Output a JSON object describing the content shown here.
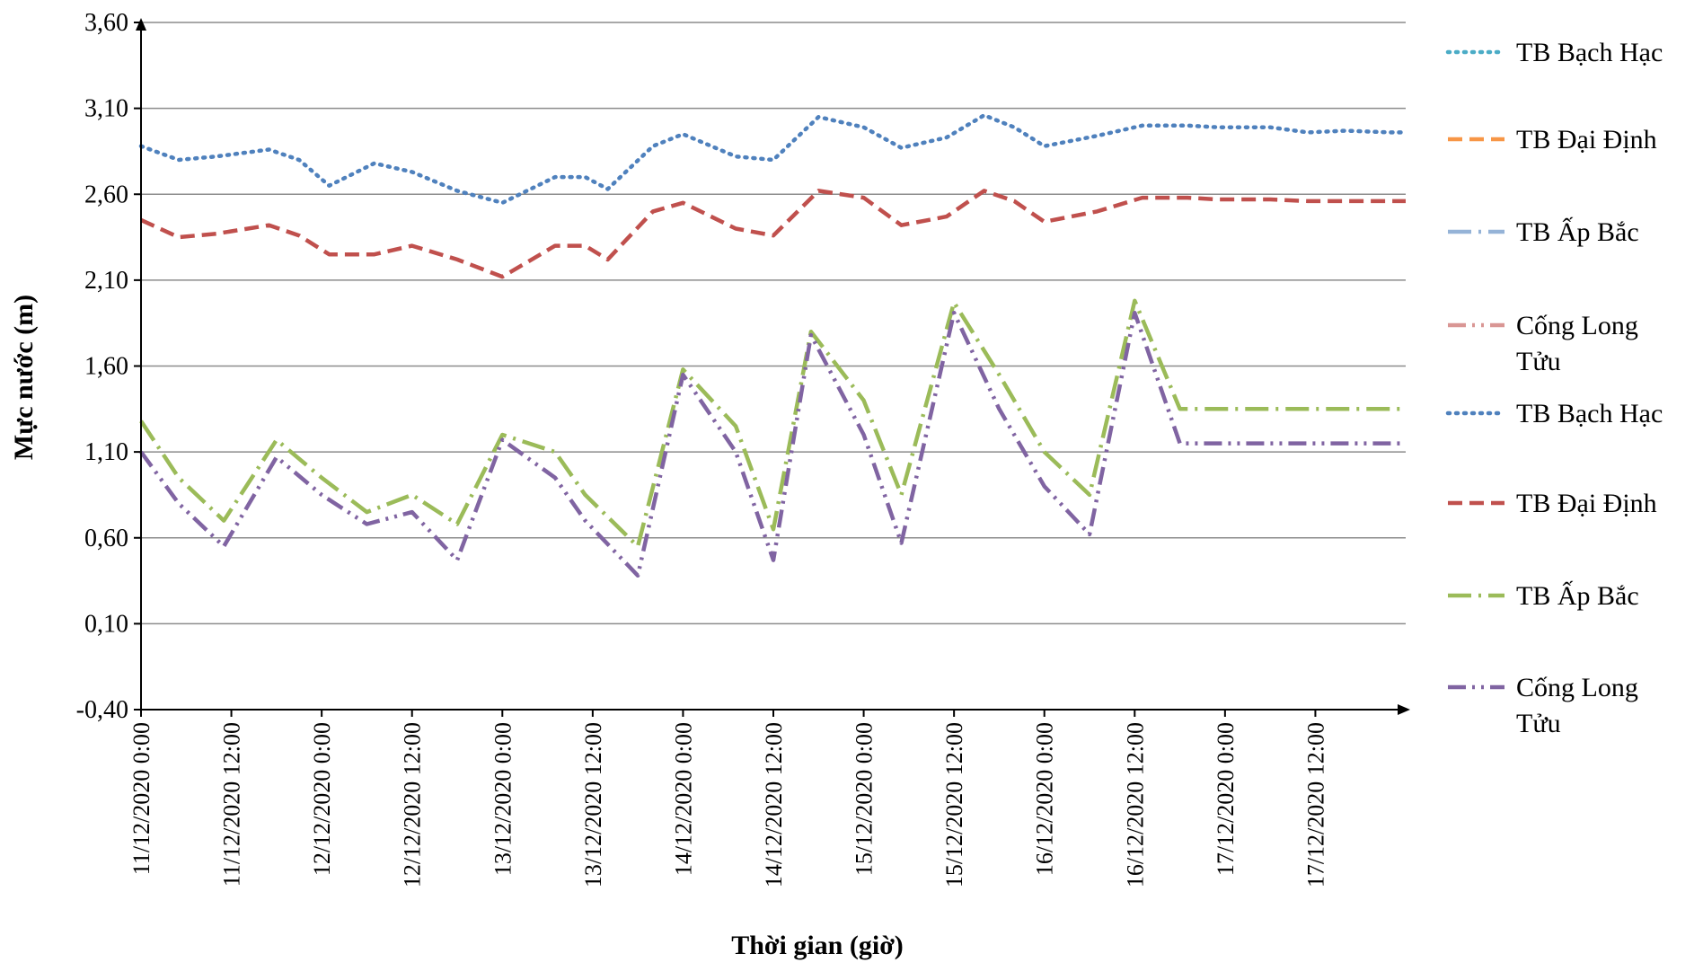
{
  "chart_data": {
    "type": "line",
    "xlabel": "Thời gian (giờ)",
    "ylabel": "Mực nước (m)",
    "ylim": [
      -0.4,
      3.6
    ],
    "yticks": [
      "-0,40",
      "0,10",
      "0,60",
      "1,10",
      "1,60",
      "2,10",
      "2,60",
      "3,10",
      "3,60"
    ],
    "xlim_hours": [
      0,
      168
    ],
    "xticks": [
      "11/12/2020 0:00",
      "11/12/2020 12:00",
      "12/12/2020 0:00",
      "12/12/2020 12:00",
      "13/12/2020 0:00",
      "13/12/2020 12:00",
      "14/12/2020 0:00",
      "14/12/2020 12:00",
      "15/12/2020 0:00",
      "15/12/2020 12:00",
      "16/12/2020 0:00",
      "16/12/2020 12:00",
      "17/12/2020 0:00",
      "17/12/2020 12:00"
    ],
    "grid": "horizontal",
    "legend_position": "right",
    "legend": [
      {
        "label": "TB Bạch Hạc",
        "color": "#4BACC6",
        "style": "dotted"
      },
      {
        "label": "TB Đại Định",
        "color": "#F79646",
        "style": "dashed"
      },
      {
        "label": "TB Ấp Bắc",
        "color": "#95B3D7",
        "style": "longdash-dot"
      },
      {
        "label": "Cống Long Tửu",
        "color": "#D99694",
        "style": "dash-dot-dot"
      },
      {
        "label": "TB Bạch Hạc",
        "color": "#4F81BD",
        "style": "dotted"
      },
      {
        "label": "TB Đại Định",
        "color": "#C0504D",
        "style": "dashed"
      },
      {
        "label": "TB Ấp Bắc",
        "color": "#9BBB59",
        "style": "longdash-dot"
      },
      {
        "label": "Cống Long Tửu",
        "color": "#8064A2",
        "style": "dash-dot-dot"
      }
    ],
    "series": [
      {
        "name": "TB Bạch Hạc",
        "color": "#4F81BD",
        "style": "dotted",
        "x": [
          0,
          5,
          10,
          17,
          21,
          25,
          31,
          36,
          42,
          48,
          55,
          59,
          62,
          68,
          72,
          79,
          84,
          90,
          96,
          101,
          107,
          112,
          116,
          120,
          127,
          133,
          139,
          143,
          150,
          155,
          160,
          166,
          168
        ],
        "y": [
          2.88,
          2.8,
          2.82,
          2.86,
          2.8,
          2.65,
          2.78,
          2.73,
          2.62,
          2.55,
          2.7,
          2.7,
          2.63,
          2.88,
          2.95,
          2.82,
          2.8,
          3.05,
          2.99,
          2.87,
          2.93,
          3.06,
          2.99,
          2.88,
          2.94,
          3.0,
          3.0,
          2.99,
          2.99,
          2.96,
          2.97,
          2.96,
          2.96
        ]
      },
      {
        "name": "TB Đại Định",
        "color": "#C0504D",
        "style": "dashed",
        "x": [
          0,
          5,
          10,
          17,
          21,
          25,
          31,
          36,
          42,
          48,
          55,
          59,
          62,
          68,
          72,
          79,
          84,
          90,
          96,
          101,
          107,
          112,
          116,
          120,
          127,
          133,
          139,
          143,
          150,
          155,
          160,
          166,
          168
        ],
        "y": [
          2.45,
          2.35,
          2.37,
          2.42,
          2.36,
          2.25,
          2.25,
          2.3,
          2.22,
          2.12,
          2.3,
          2.3,
          2.22,
          2.5,
          2.55,
          2.4,
          2.36,
          2.62,
          2.58,
          2.42,
          2.47,
          2.62,
          2.56,
          2.44,
          2.5,
          2.58,
          2.58,
          2.57,
          2.57,
          2.56,
          2.56,
          2.56,
          2.56
        ]
      },
      {
        "name": "TB Ấp Bắc",
        "color": "#9BBB59",
        "style": "longdash-dot",
        "x": [
          0,
          5,
          11,
          18,
          24,
          30,
          36,
          42,
          48,
          55,
          59,
          66,
          72,
          79,
          84,
          89,
          96,
          101,
          108,
          114,
          120,
          126,
          132,
          138,
          144,
          150,
          156,
          162,
          168
        ],
        "y": [
          1.28,
          0.95,
          0.7,
          1.17,
          0.95,
          0.75,
          0.85,
          0.68,
          1.2,
          1.1,
          0.85,
          0.55,
          1.58,
          1.25,
          0.65,
          1.8,
          1.4,
          0.85,
          1.97,
          1.55,
          1.1,
          0.85,
          1.98,
          1.35,
          1.35,
          1.35,
          1.35,
          1.35,
          1.35
        ]
      },
      {
        "name": "Cống Long Tửu",
        "color": "#8064A2",
        "style": "dash-dot-dot",
        "x": [
          0,
          5,
          11,
          18,
          24,
          30,
          36,
          42,
          48,
          55,
          59,
          66,
          72,
          79,
          84,
          89,
          96,
          101,
          108,
          114,
          120,
          126,
          132,
          138,
          144,
          150,
          156,
          162,
          168
        ],
        "y": [
          1.1,
          0.8,
          0.55,
          1.07,
          0.85,
          0.68,
          0.75,
          0.47,
          1.17,
          0.95,
          0.7,
          0.38,
          1.55,
          1.1,
          0.47,
          1.78,
          1.2,
          0.57,
          1.91,
          1.35,
          0.9,
          0.62,
          1.91,
          1.15,
          1.15,
          1.15,
          1.15,
          1.15,
          1.15
        ]
      }
    ]
  }
}
